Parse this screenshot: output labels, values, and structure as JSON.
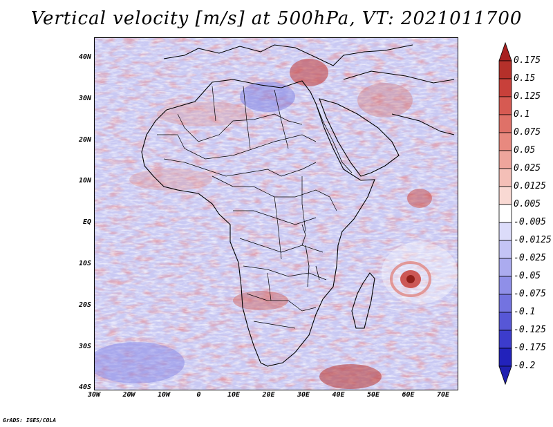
{
  "title": "Vertical velocity [m/s] at 500hPa, VT: 2021011700",
  "credit": "GrADS: IGES/COLA",
  "lat_labels": [
    "40N",
    "30N",
    "20N",
    "10N",
    "EQ",
    "10S",
    "20S",
    "30S",
    "40S"
  ],
  "lon_labels": [
    "30W",
    "20W",
    "10W",
    "0",
    "10E",
    "20E",
    "30E",
    "40E",
    "50E",
    "60E",
    "70E"
  ],
  "colorbar": {
    "labels": [
      "0.175",
      "0.15",
      "0.125",
      "0.1",
      "0.075",
      "0.05",
      "0.025",
      "0.0125",
      "0.005",
      "-0.005",
      "-0.0125",
      "-0.025",
      "-0.05",
      "-0.075",
      "-0.1",
      "-0.125",
      "-0.175",
      "-0.2"
    ],
    "colors": [
      "#b5302a",
      "#c8403a",
      "#d65a52",
      "#df7168",
      "#e8897f",
      "#eea59c",
      "#f4bfb7",
      "#f9d9d3",
      "#ffffff",
      "#dcdcfa",
      "#c4c4f5",
      "#ababef",
      "#8f8fe8",
      "#7373e0",
      "#5757d6",
      "#3c3ccc",
      "#2222bb"
    ],
    "top_arrow_color": "#a82020",
    "bottom_arrow_color": "#2020b0"
  },
  "map": {
    "background_color": "#c9c9f3",
    "features": [
      "tropical-cyclone",
      "coastlines",
      "country-borders"
    ]
  }
}
